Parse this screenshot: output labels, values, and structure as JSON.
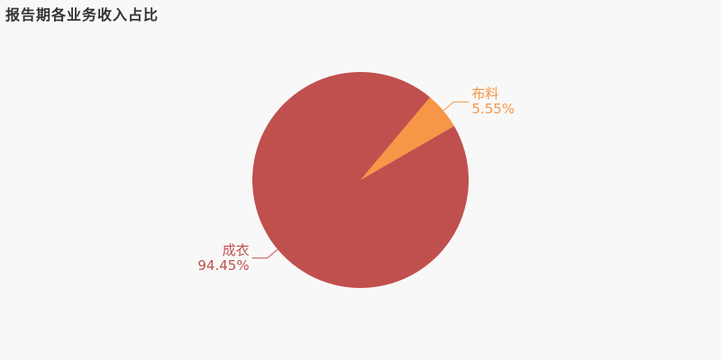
{
  "chart_data": {
    "type": "pie",
    "title": "报告期各业务收入占比",
    "slices": [
      {
        "label": "布料",
        "value": 5.55,
        "display": "5.55%",
        "color": "#f79646"
      },
      {
        "label": "成衣",
        "value": 94.45,
        "display": "94.45%",
        "color": "#c0504d"
      }
    ],
    "legend": "none",
    "background": "#f8f8f8"
  }
}
